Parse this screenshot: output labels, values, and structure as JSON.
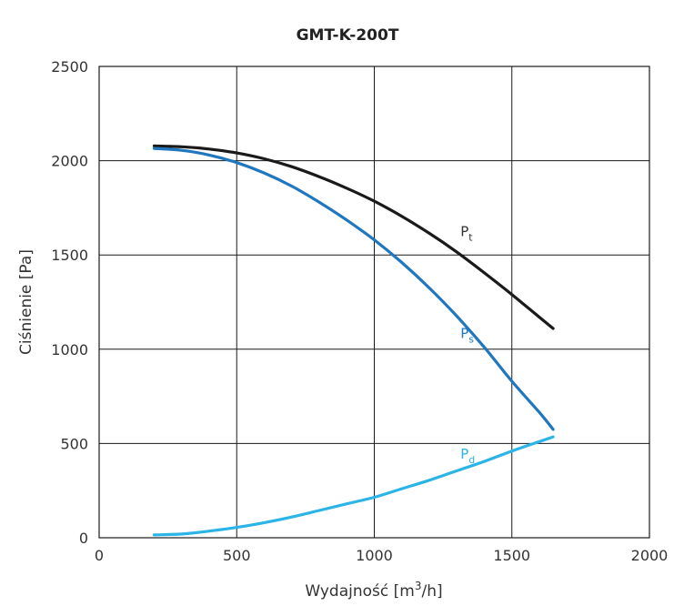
{
  "chart_data": {
    "type": "line",
    "title": "GMT-K-200T",
    "xlabel": "Wydajność [m³/h]",
    "xlabel_parts": {
      "prefix": "Wydajność [m",
      "sup": "3",
      "suffix": "/h]"
    },
    "ylabel": "Ciśnienie [Pa]",
    "xlim": [
      0,
      2000
    ],
    "ylim": [
      0,
      2500
    ],
    "xticks": [
      0,
      500,
      1000,
      1500,
      2000
    ],
    "yticks": [
      0,
      500,
      1000,
      1500,
      2000,
      2500
    ],
    "grid": true,
    "series": [
      {
        "name": "Pt",
        "label_main": "P",
        "label_sub": "t",
        "label_at": [
          1300,
          1600
        ],
        "color": "#1a1a1a",
        "x": [
          200,
          300,
          400,
          500,
          600,
          700,
          800,
          900,
          1000,
          1100,
          1200,
          1300,
          1400,
          1500,
          1600,
          1650
        ],
        "y": [
          2078,
          2074,
          2062,
          2041,
          2010,
          1968,
          1915,
          1854,
          1785,
          1705,
          1615,
          1515,
          1405,
          1290,
          1170,
          1110
        ]
      },
      {
        "name": "Ps",
        "label_main": "P",
        "label_sub": "s",
        "label_at": [
          1300,
          1060
        ],
        "color": "#1f77c0",
        "x": [
          200,
          300,
          400,
          500,
          600,
          700,
          800,
          900,
          1000,
          1100,
          1200,
          1300,
          1400,
          1500,
          1600,
          1650
        ],
        "y": [
          2065,
          2055,
          2030,
          1990,
          1935,
          1865,
          1780,
          1685,
          1580,
          1460,
          1325,
          1175,
          1010,
          830,
          665,
          575
        ]
      },
      {
        "name": "Pd",
        "label_main": "P",
        "label_sub": "d",
        "label_at": [
          1300,
          420
        ],
        "color": "#2ab4e8",
        "x": [
          200,
          300,
          400,
          500,
          600,
          700,
          800,
          900,
          1000,
          1100,
          1200,
          1300,
          1400,
          1500,
          1600,
          1650
        ],
        "y": [
          15,
          20,
          35,
          55,
          80,
          110,
          145,
          180,
          215,
          260,
          305,
          355,
          405,
          460,
          510,
          535
        ]
      }
    ]
  }
}
